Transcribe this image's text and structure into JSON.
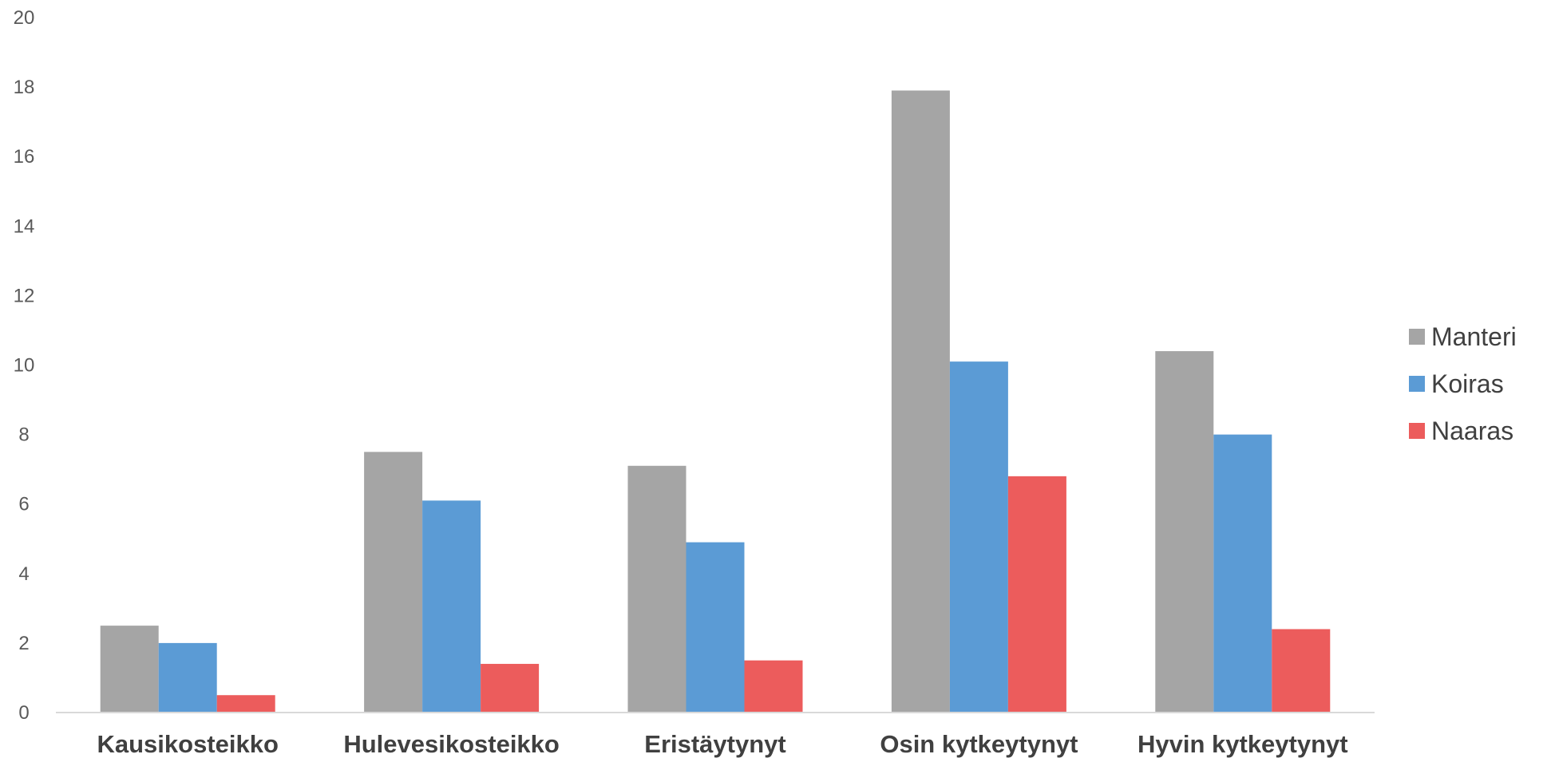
{
  "chart_data": {
    "type": "bar",
    "title": "",
    "xlabel": "",
    "ylabel": "",
    "ylim": [
      0,
      20
    ],
    "yticks": [
      0,
      2,
      4,
      6,
      8,
      10,
      12,
      14,
      16,
      18,
      20
    ],
    "grid": false,
    "legend_position": "right",
    "categories": [
      "Kausikosteikko",
      "Hulevesikosteikko",
      "Eristäytynyt",
      "Osin kytkeytynyt",
      "Hyvin kytkeytynyt"
    ],
    "series": [
      {
        "name": "Manteri",
        "color": "#a5a5a5",
        "values": [
          2.5,
          7.5,
          7.1,
          17.9,
          10.4
        ]
      },
      {
        "name": "Koiras",
        "color": "#5b9bd5",
        "values": [
          2.0,
          6.1,
          4.9,
          10.1,
          8.0
        ]
      },
      {
        "name": "Naaras",
        "color": "#ec5c5c",
        "values": [
          0.5,
          1.4,
          1.5,
          6.8,
          2.4
        ]
      }
    ]
  }
}
